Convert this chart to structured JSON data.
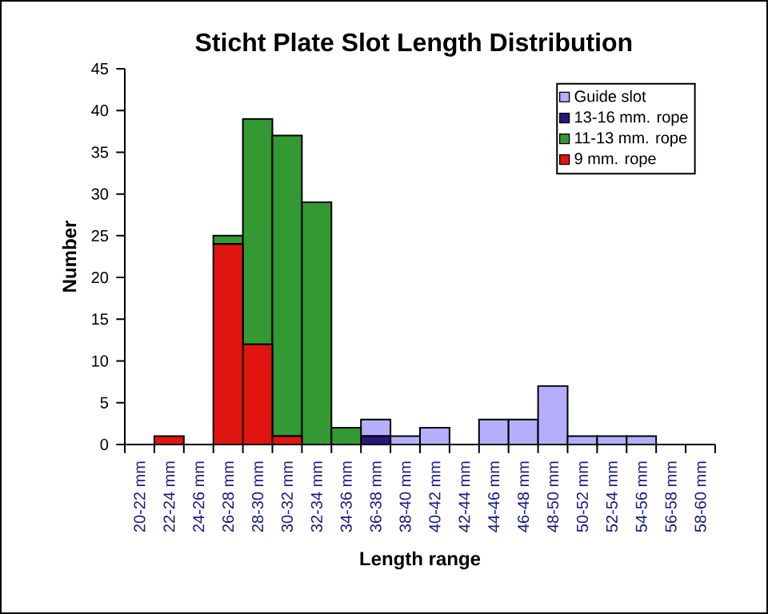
{
  "chart_data": {
    "type": "bar",
    "title": "Sticht Plate Slot Length Distribution",
    "xlabel": "Length range",
    "ylabel": "Number",
    "categories": [
      "20-22 mm",
      "22-24 mm",
      "24-26 mm",
      "26-28 mm",
      "28-30 mm",
      "30-32 mm",
      "32-34 mm",
      "34-36 mm",
      "36-38 mm",
      "38-40 mm",
      "40-42 mm",
      "42-44 mm",
      "44-46 mm",
      "46-48 mm",
      "48-50 mm",
      "50-52 mm",
      "52-54 mm",
      "54-56 mm",
      "56-58 mm",
      "58-60 mm"
    ],
    "stacked": true,
    "series": [
      {
        "name": "9 mm. rope",
        "color": "#e0150f",
        "values": [
          0,
          1,
          0,
          24,
          12,
          1,
          0,
          0,
          0,
          0,
          0,
          0,
          0,
          0,
          0,
          0,
          0,
          0,
          0,
          0
        ]
      },
      {
        "name": "11-13 mm. rope",
        "color": "#339933",
        "values": [
          0,
          0,
          0,
          1,
          27,
          36,
          29,
          2,
          0,
          0,
          0,
          0,
          0,
          0,
          0,
          0,
          0,
          0,
          0,
          0
        ]
      },
      {
        "name": "13-16 mm. rope",
        "color": "#2a1480",
        "values": [
          0,
          0,
          0,
          0,
          0,
          0,
          0,
          0,
          1,
          0,
          0,
          0,
          0,
          0,
          0,
          0,
          0,
          0,
          0,
          0
        ]
      },
      {
        "name": "Guide slot",
        "color": "#b4aefc",
        "values": [
          0,
          0,
          0,
          0,
          0,
          0,
          0,
          0,
          2,
          1,
          2,
          0,
          3,
          3,
          7,
          1,
          1,
          1,
          0,
          0
        ]
      }
    ],
    "ylim": [
      0,
      45
    ],
    "yticks": [
      0,
      5,
      10,
      15,
      20,
      25,
      30,
      35,
      40,
      45
    ],
    "legend": "top right"
  }
}
